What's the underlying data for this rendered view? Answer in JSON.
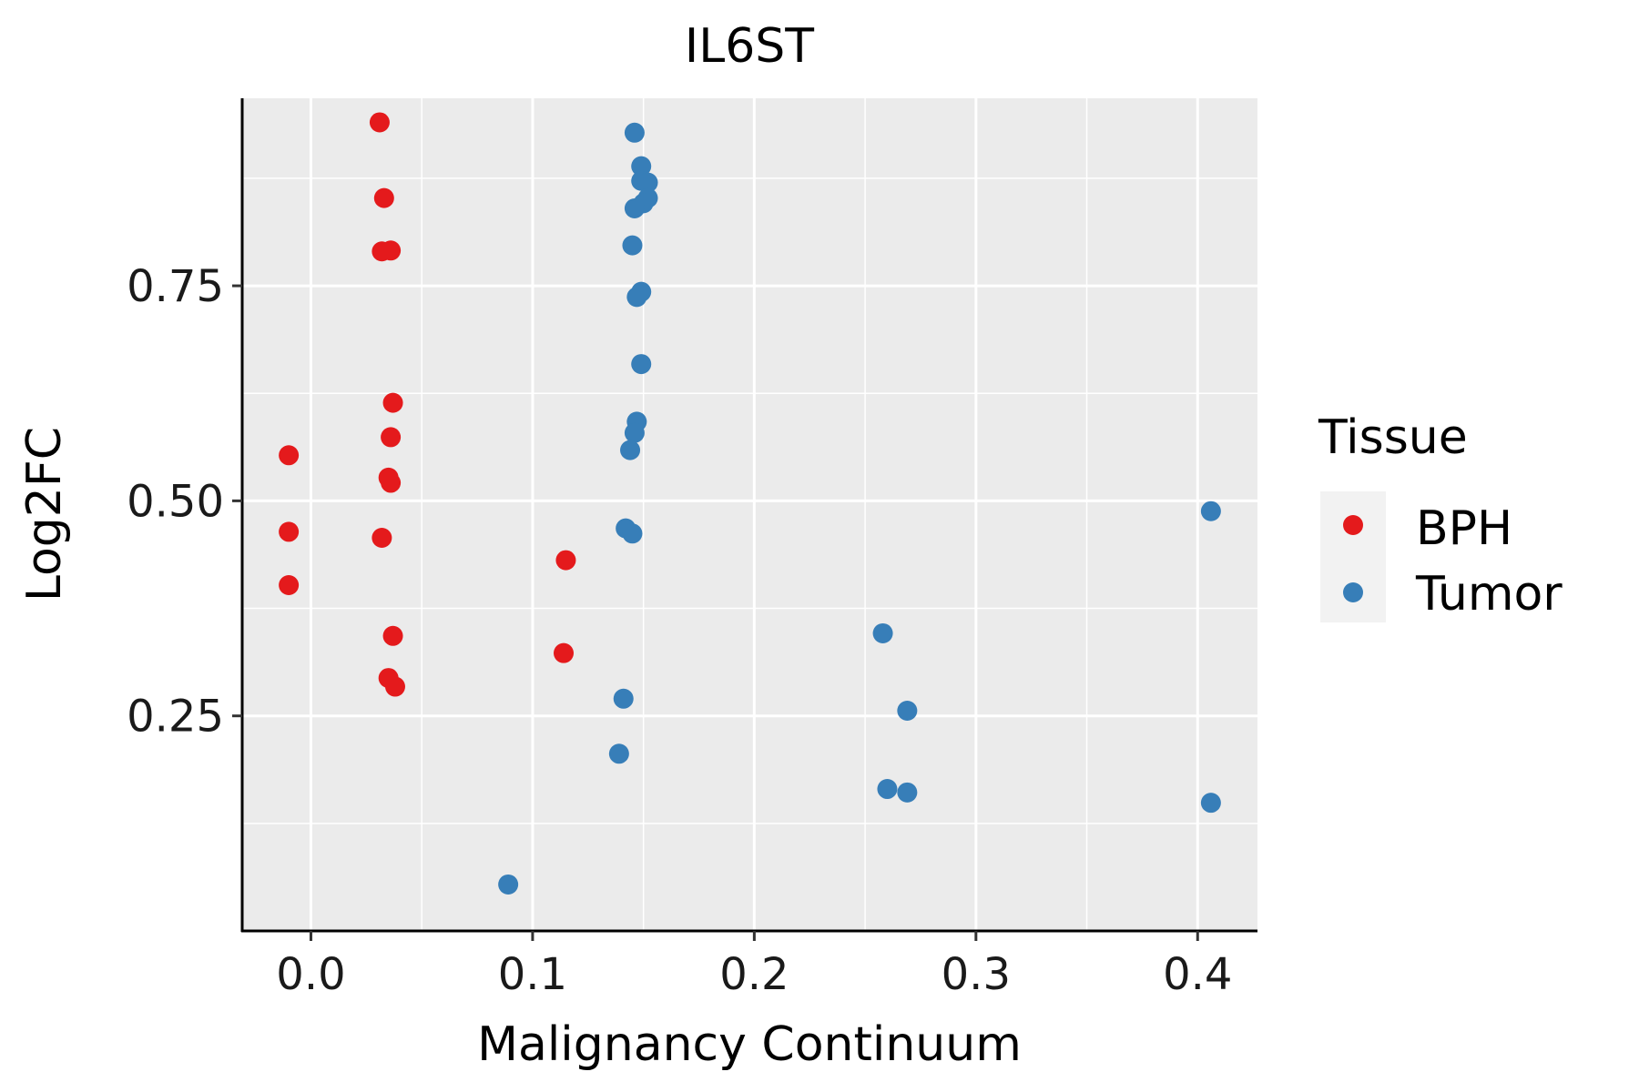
{
  "chart_data": {
    "type": "scatter",
    "title": "IL6ST",
    "xlabel": "Malignancy Continuum",
    "ylabel": "Log2FC",
    "xlim": [
      -0.031,
      0.427
    ],
    "ylim": [
      0.0,
      0.968
    ],
    "x_ticks": [
      0.0,
      0.1,
      0.2,
      0.3,
      0.4
    ],
    "x_tick_labels": [
      "0.0",
      "0.1",
      "0.2",
      "0.3",
      "0.4"
    ],
    "y_ticks": [
      0.25,
      0.5,
      0.75
    ],
    "y_tick_labels": [
      "0.25",
      "0.50",
      "0.75"
    ],
    "grid": true,
    "legend": {
      "title": "Tissue",
      "position": "right",
      "entries": [
        {
          "label": "BPH",
          "color": "#E41A1C"
        },
        {
          "label": "Tumor",
          "color": "#377EB8"
        }
      ]
    },
    "series": [
      {
        "name": "BPH",
        "color": "#E41A1C",
        "points": [
          {
            "x": 0.031,
            "y": 0.94
          },
          {
            "x": 0.033,
            "y": 0.852
          },
          {
            "x": 0.032,
            "y": 0.79
          },
          {
            "x": 0.036,
            "y": 0.791
          },
          {
            "x": 0.037,
            "y": 0.614
          },
          {
            "x": 0.036,
            "y": 0.574
          },
          {
            "x": 0.035,
            "y": 0.527
          },
          {
            "x": 0.036,
            "y": 0.521
          },
          {
            "x": 0.032,
            "y": 0.457
          },
          {
            "x": -0.01,
            "y": 0.553
          },
          {
            "x": -0.01,
            "y": 0.464
          },
          {
            "x": -0.01,
            "y": 0.402
          },
          {
            "x": 0.037,
            "y": 0.343
          },
          {
            "x": 0.035,
            "y": 0.294
          },
          {
            "x": 0.038,
            "y": 0.284
          },
          {
            "x": 0.115,
            "y": 0.431
          },
          {
            "x": 0.114,
            "y": 0.323
          }
        ]
      },
      {
        "name": "Tumor",
        "color": "#377EB8",
        "points": [
          {
            "x": 0.146,
            "y": 0.928
          },
          {
            "x": 0.149,
            "y": 0.889
          },
          {
            "x": 0.149,
            "y": 0.872
          },
          {
            "x": 0.152,
            "y": 0.87
          },
          {
            "x": 0.152,
            "y": 0.852
          },
          {
            "x": 0.15,
            "y": 0.846
          },
          {
            "x": 0.146,
            "y": 0.84
          },
          {
            "x": 0.145,
            "y": 0.797
          },
          {
            "x": 0.149,
            "y": 0.743
          },
          {
            "x": 0.147,
            "y": 0.737
          },
          {
            "x": 0.149,
            "y": 0.659
          },
          {
            "x": 0.147,
            "y": 0.592
          },
          {
            "x": 0.146,
            "y": 0.579
          },
          {
            "x": 0.144,
            "y": 0.559
          },
          {
            "x": 0.142,
            "y": 0.468
          },
          {
            "x": 0.145,
            "y": 0.462
          },
          {
            "x": 0.141,
            "y": 0.27
          },
          {
            "x": 0.139,
            "y": 0.206
          },
          {
            "x": 0.258,
            "y": 0.346
          },
          {
            "x": 0.269,
            "y": 0.256
          },
          {
            "x": 0.26,
            "y": 0.165
          },
          {
            "x": 0.269,
            "y": 0.161
          },
          {
            "x": 0.406,
            "y": 0.488
          },
          {
            "x": 0.406,
            "y": 0.149
          },
          {
            "x": 0.089,
            "y": 0.054
          }
        ]
      }
    ]
  }
}
